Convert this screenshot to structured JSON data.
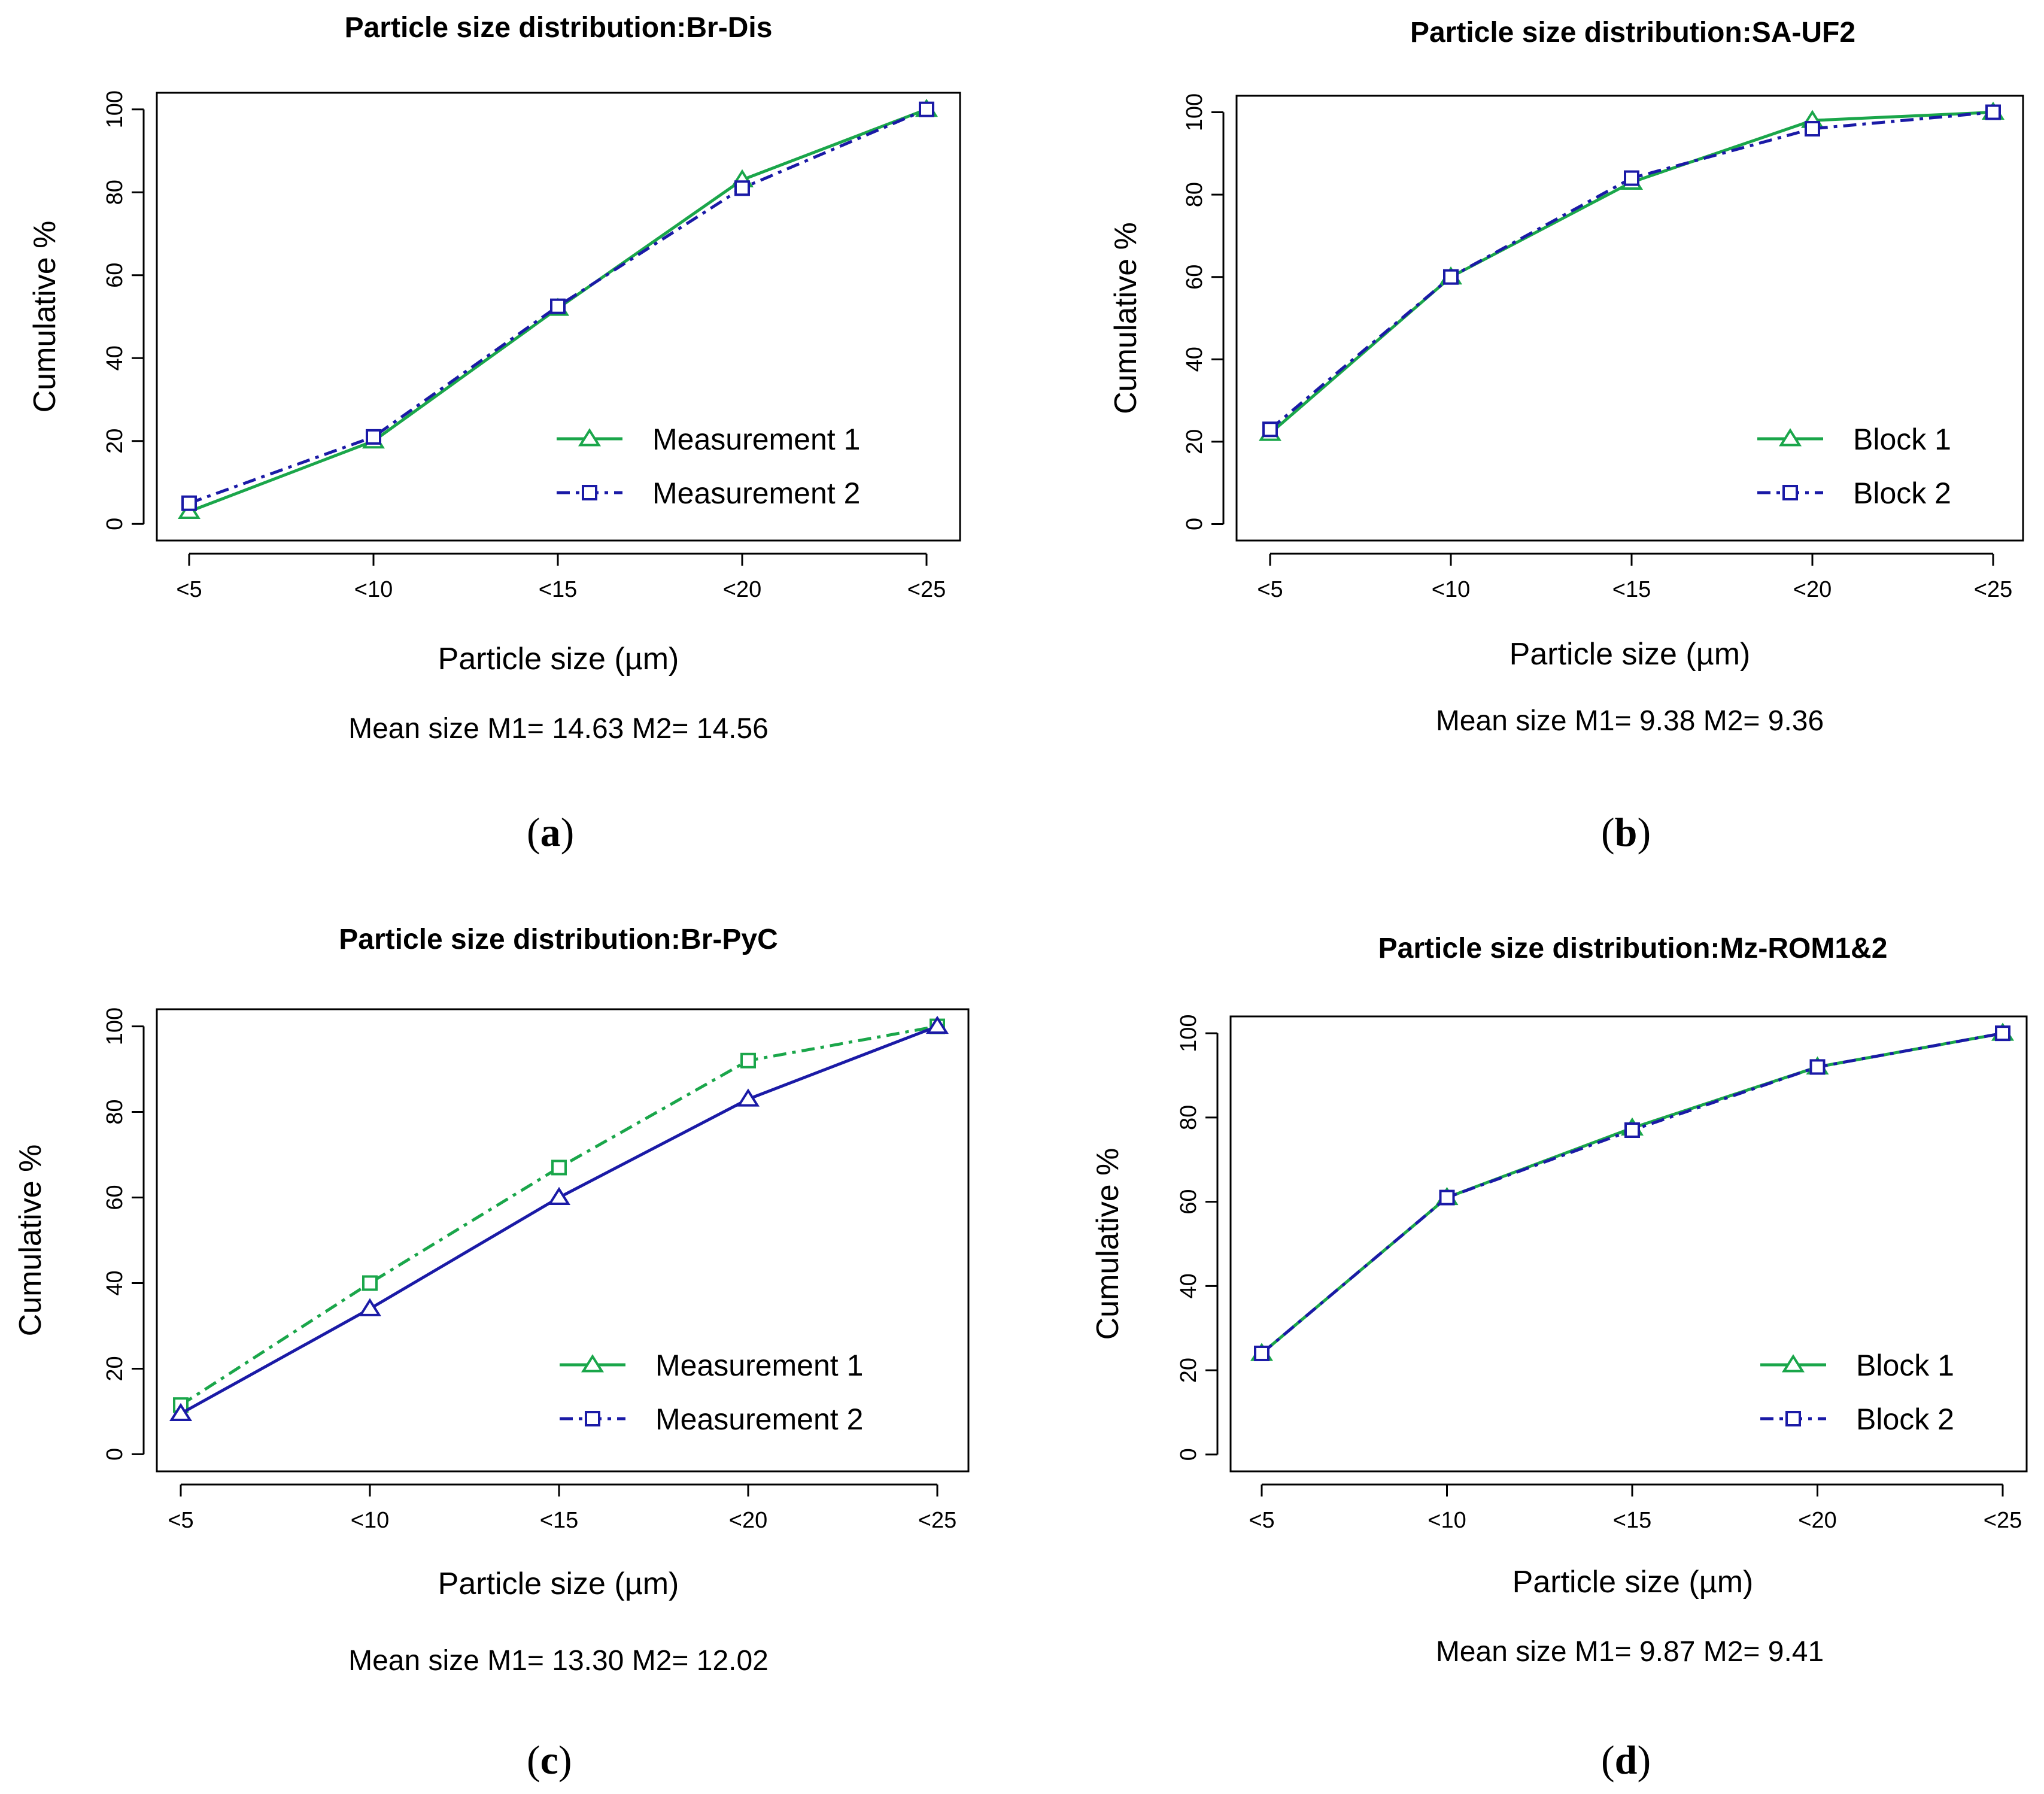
{
  "colors": {
    "green": "#1aa64a",
    "blue": "#1a1aa6",
    "frame": "#000000"
  },
  "chart_data": [
    {
      "id": "a",
      "type": "line",
      "title": "Particle size distribution:Br-Dis",
      "xlabel": "Particle size (µm)",
      "ylabel": "Cumulative %",
      "categories": [
        "<5",
        "<10",
        "<15",
        "<20",
        "<25"
      ],
      "ylim": [
        0,
        100
      ],
      "yticks": [
        0,
        20,
        40,
        60,
        80,
        100
      ],
      "series": [
        {
          "name": "Measurement 1",
          "color": "#1aa64a",
          "marker": "triangle",
          "dash": "solid",
          "legend_marker": "triangle",
          "values": [
            3,
            20,
            52,
            83,
            100
          ]
        },
        {
          "name": "Measurement 2",
          "color": "#1a1aa6",
          "marker": "square",
          "dash": "dashed",
          "legend_marker": "square",
          "values": [
            5,
            21,
            52.5,
            81,
            100
          ]
        }
      ],
      "legend_position": "bottom-right",
      "mean_text": "Mean size M1= 14.63   M2= 14.56",
      "panel_label": "a"
    },
    {
      "id": "b",
      "type": "line",
      "title": "Particle size distribution:SA-UF2",
      "xlabel": "Particle size (µm)",
      "ylabel": "Cumulative %",
      "categories": [
        "<5",
        "<10",
        "<15",
        "<20",
        "<25"
      ],
      "ylim": [
        0,
        100
      ],
      "yticks": [
        0,
        20,
        40,
        60,
        80,
        100
      ],
      "series": [
        {
          "name": "Block 1",
          "color": "#1aa64a",
          "marker": "triangle",
          "dash": "solid",
          "legend_marker": "triangle",
          "values": [
            22,
            60,
            83,
            98,
            100
          ]
        },
        {
          "name": "Block 2",
          "color": "#1a1aa6",
          "marker": "square",
          "dash": "dashed",
          "legend_marker": "square",
          "values": [
            23,
            60,
            84,
            96,
            100
          ]
        }
      ],
      "legend_position": "bottom-right",
      "mean_text": "Mean size M1= 9.38  M2= 9.36",
      "panel_label": "b"
    },
    {
      "id": "c",
      "type": "line",
      "title": "Particle size distribution:Br-PyC",
      "xlabel": "Particle size (µm)",
      "ylabel": "Cumulative %",
      "categories": [
        "<5",
        "<10",
        "<15",
        "<20",
        "<25"
      ],
      "ylim": [
        0,
        100
      ],
      "yticks": [
        0,
        20,
        40,
        60,
        80,
        100
      ],
      "series": [
        {
          "name": "Measurement 1",
          "color": "#1aa64a",
          "marker": "square",
          "dash": "dashed",
          "legend_marker": "triangle",
          "values": [
            11.5,
            40,
            67,
            92,
            100
          ]
        },
        {
          "name": "Measurement 2",
          "color": "#1a1aa6",
          "marker": "triangle",
          "dash": "solid",
          "legend_marker": "square",
          "values": [
            9.5,
            34,
            60,
            83,
            100
          ]
        }
      ],
      "legend_position": "bottom-right",
      "mean_text": "Mean size M1= 13.30  M2= 12.02",
      "panel_label": "c"
    },
    {
      "id": "d",
      "type": "line",
      "title": "Particle size distribution:Mz-ROM1&2",
      "xlabel": "Particle size (µm)",
      "ylabel": "Cumulative %",
      "categories": [
        "<5",
        "<10",
        "<15",
        "<20",
        "<25"
      ],
      "ylim": [
        0,
        100
      ],
      "yticks": [
        0,
        20,
        40,
        60,
        80,
        100
      ],
      "series": [
        {
          "name": "Block 1",
          "color": "#1aa64a",
          "marker": "triangle",
          "dash": "solid",
          "legend_marker": "triangle",
          "values": [
            24,
            61,
            77.5,
            92,
            100
          ]
        },
        {
          "name": "Block 2",
          "color": "#1a1aa6",
          "marker": "square",
          "dash": "dashed",
          "legend_marker": "square",
          "values": [
            24,
            61,
            77,
            92,
            100
          ]
        }
      ],
      "legend_position": "bottom-right",
      "mean_text": "Mean size M1= 9.87  M2= 9.41",
      "panel_label": "d"
    }
  ]
}
